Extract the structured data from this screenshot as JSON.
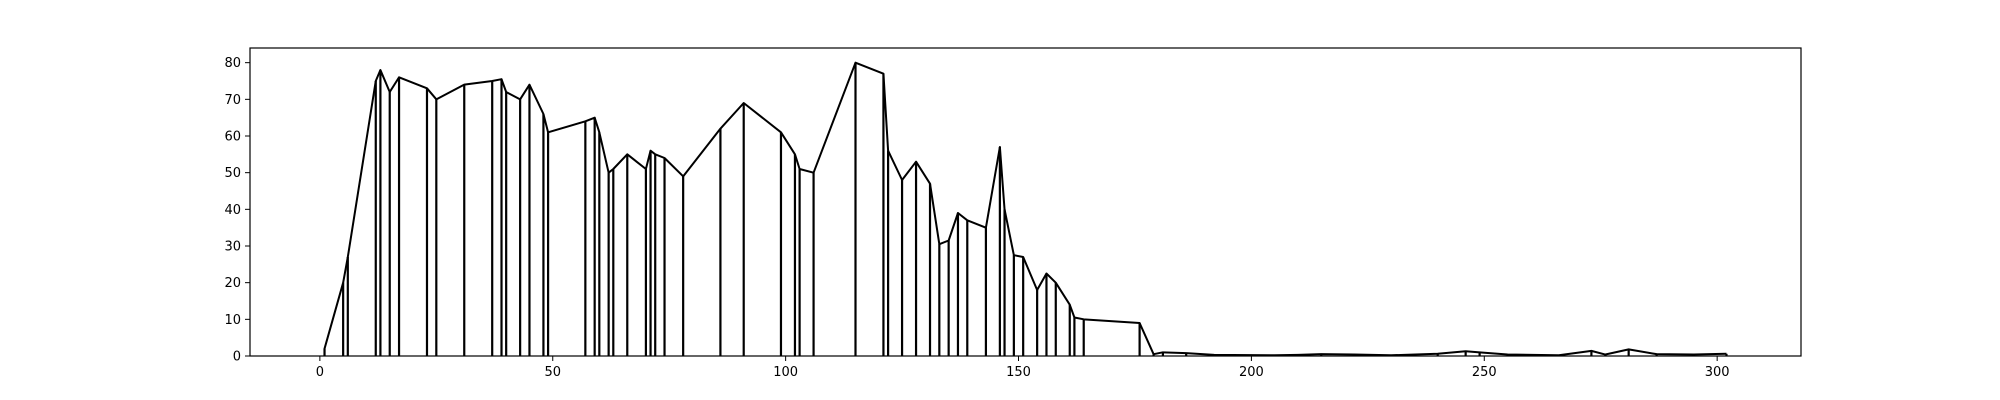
{
  "chart_data": {
    "type": "line",
    "title": "",
    "xlabel": "",
    "ylabel": "",
    "xlim": [
      -15,
      318
    ],
    "ylim": [
      0,
      84
    ],
    "grid": false,
    "legend": "none",
    "xticks": [
      0,
      50,
      100,
      150,
      200,
      250,
      300
    ],
    "yticks": [
      0,
      10,
      20,
      30,
      40,
      50,
      60,
      70,
      80
    ],
    "stems": true,
    "series": [
      {
        "color": "#000000",
        "points": [
          [
            1,
            0
          ],
          [
            1,
            2
          ],
          [
            5,
            20
          ],
          [
            6,
            27
          ],
          [
            12,
            75
          ],
          [
            13,
            78
          ],
          [
            15,
            72
          ],
          [
            17,
            76
          ],
          [
            23,
            73
          ],
          [
            25,
            70
          ],
          [
            31,
            74
          ],
          [
            37,
            75
          ],
          [
            39,
            75.5
          ],
          [
            40,
            72
          ],
          [
            43,
            70
          ],
          [
            45,
            74
          ],
          [
            48,
            66
          ],
          [
            49,
            61
          ],
          [
            57,
            64
          ],
          [
            59,
            65
          ],
          [
            60,
            61
          ],
          [
            62,
            50
          ],
          [
            63,
            51
          ],
          [
            66,
            55
          ],
          [
            70,
            51
          ],
          [
            71,
            56
          ],
          [
            72,
            55
          ],
          [
            74,
            54
          ],
          [
            78,
            49
          ],
          [
            86,
            62
          ],
          [
            91,
            69
          ],
          [
            99,
            61
          ],
          [
            102,
            55
          ],
          [
            103,
            51
          ],
          [
            106,
            50
          ],
          [
            115,
            80
          ],
          [
            121,
            77
          ],
          [
            122,
            56
          ],
          [
            125,
            48
          ],
          [
            128,
            53
          ],
          [
            131,
            47
          ],
          [
            133,
            30.5
          ],
          [
            135,
            31.5
          ],
          [
            137,
            39
          ],
          [
            139,
            37
          ],
          [
            143,
            35
          ],
          [
            146,
            57
          ],
          [
            147,
            40
          ],
          [
            149,
            27.5
          ],
          [
            151,
            27
          ],
          [
            154,
            18
          ],
          [
            156,
            22.5
          ],
          [
            158,
            20
          ],
          [
            161,
            14
          ],
          [
            162,
            10.5
          ],
          [
            164,
            10
          ],
          [
            176,
            9
          ],
          [
            179,
            0.5
          ],
          [
            181,
            1
          ],
          [
            186,
            0.8
          ],
          [
            192,
            0.3
          ],
          [
            205,
            0.2
          ],
          [
            210,
            0.3
          ],
          [
            215,
            0.5
          ],
          [
            222,
            0.4
          ],
          [
            230,
            0.2
          ],
          [
            240,
            0.6
          ],
          [
            246,
            1.3
          ],
          [
            249,
            1
          ],
          [
            255,
            0.4
          ],
          [
            266,
            0.2
          ],
          [
            273,
            1.4
          ],
          [
            276,
            0.4
          ],
          [
            281,
            1.8
          ],
          [
            287,
            0.5
          ],
          [
            295,
            0.4
          ],
          [
            302,
            0.6
          ]
        ]
      }
    ]
  }
}
